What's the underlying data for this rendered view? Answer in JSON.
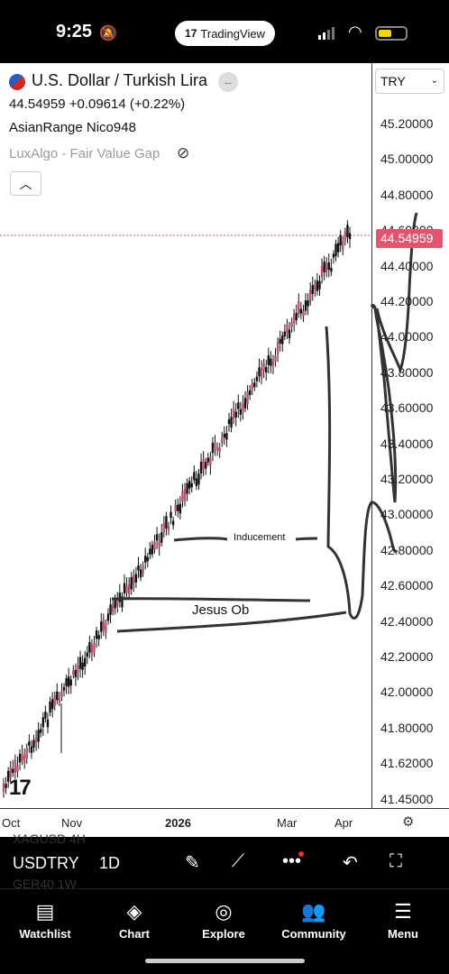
{
  "status_bar": {
    "time": "9:25",
    "app_badge": "TradingView",
    "app_badge_logo": "17"
  },
  "header": {
    "symbol_name": "U.S. Dollar / Turkish Lira",
    "price_line": "44.54959 +0.09614 (+0.22%)",
    "indicator_1": "AsianRange Nico948",
    "indicator_2": "LuxAlgo - Fair Value Gap",
    "collapse_icon": "chevron-up-icon"
  },
  "price_axis": {
    "currency": "TRY",
    "ticks": [
      "45.20000",
      "45.00000",
      "44.80000",
      "44.60000",
      "44.40000",
      "44.20000",
      "44.00000",
      "43.80000",
      "43.60000",
      "43.40000",
      "43.20000",
      "43.00000",
      "42.80000",
      "42.60000",
      "42.40000",
      "42.20000",
      "42.00000",
      "41.80000",
      "41.62000",
      "41.45000"
    ],
    "current_price": "44.54959",
    "current_price_color": "#e0566f"
  },
  "time_axis": {
    "ticks": [
      "Oct",
      "Nov",
      "2026",
      "Mar",
      "Apr"
    ]
  },
  "annotations": {
    "inducement": "Inducement",
    "jesus_ob": "Jesus Ob"
  },
  "watermark": "17",
  "chart_data": {
    "type": "candlestick",
    "series": [
      {
        "x": [
          "Oct",
          "Nov",
          "2026",
          "Mar",
          "Apr"
        ],
        "values": [
          41.52,
          42.25,
          43.1,
          44.05,
          44.54959
        ]
      }
    ],
    "ylim": [
      41.45,
      45.2
    ],
    "grid": false
  },
  "toolbar": {
    "symbol": "USDTRY",
    "timeframe": "1D",
    "ghost_top": "XAGUSD 4H",
    "ghost_bottom": "GER40 1W"
  },
  "tabs": [
    {
      "label": "Watchlist",
      "icon": "document-icon"
    },
    {
      "label": "Chart",
      "icon": "chart-icon"
    },
    {
      "label": "Explore",
      "icon": "compass-icon"
    },
    {
      "label": "Community",
      "icon": "people-icon"
    },
    {
      "label": "Menu",
      "icon": "menu-icon"
    }
  ]
}
